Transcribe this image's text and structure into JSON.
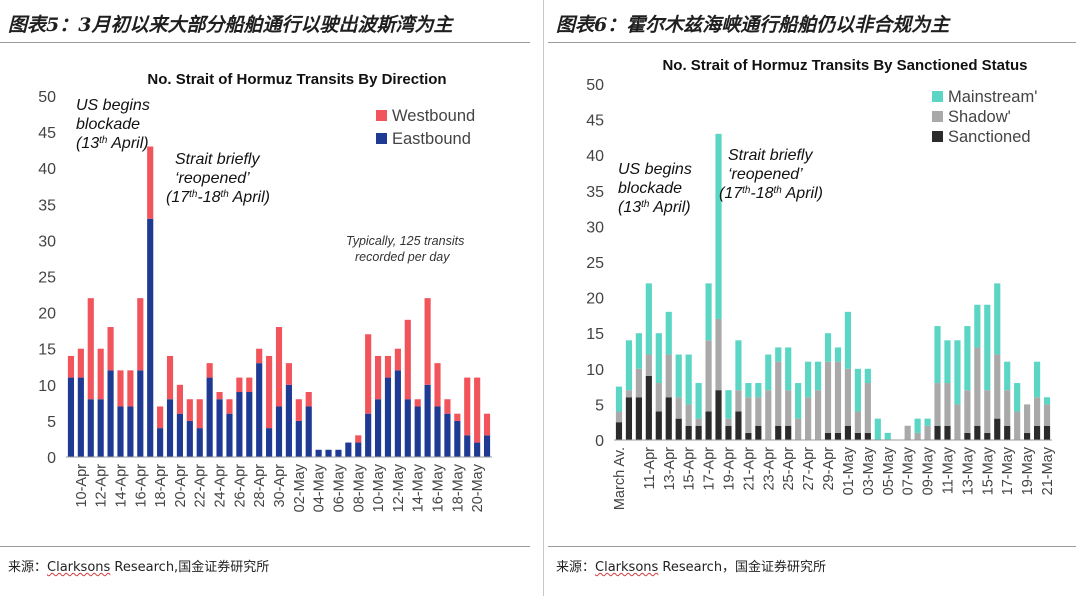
{
  "panels": [
    {
      "heading": "图表5：3月初以来大部分船舶通行以驶出波斯湾为主",
      "source_prefix": "来源：",
      "source_name": "Clarksons",
      "source_rest": " Research,国金证券研究所"
    },
    {
      "heading": "图表6：霍尔木兹海峡通行船舶仍以非合规为主",
      "source_prefix": "来源：",
      "source_name": "Clarksons",
      "source_rest": " Research，国金证券研究所"
    }
  ],
  "chart_data": [
    {
      "type": "bar",
      "stacked": true,
      "title": "No. Strait of Hormuz Transits By Direction",
      "ylim": [
        0,
        50
      ],
      "yticks": [
        0,
        5,
        10,
        15,
        20,
        25,
        30,
        35,
        40,
        45,
        50
      ],
      "grid": false,
      "legend_position": "top-right",
      "categories": [
        "09-Apr",
        "10-Apr",
        "11-Apr",
        "12-Apr",
        "13-Apr",
        "14-Apr",
        "15-Apr",
        "16-Apr",
        "17-Apr",
        "18-Apr",
        "19-Apr",
        "20-Apr",
        "21-Apr",
        "22-Apr",
        "23-Apr",
        "24-Apr",
        "25-Apr",
        "26-Apr",
        "27-Apr",
        "28-Apr",
        "29-Apr",
        "30-Apr",
        "01-May",
        "02-May",
        "03-May",
        "04-May",
        "05-May",
        "06-May",
        "07-May",
        "08-May",
        "09-May",
        "10-May",
        "11-May",
        "12-May",
        "13-May",
        "14-May",
        "15-May",
        "16-May",
        "17-May",
        "18-May",
        "19-May",
        "20-May",
        "21-May"
      ],
      "tick_labels": [
        "10-Apr",
        "12-Apr",
        "14-Apr",
        "16-Apr",
        "18-Apr",
        "20-Apr",
        "22-Apr",
        "24-Apr",
        "26-Apr",
        "28-Apr",
        "30-Apr",
        "02-May",
        "04-May",
        "06-May",
        "08-May",
        "10-May",
        "12-May",
        "14-May",
        "16-May",
        "18-May",
        "20-May"
      ],
      "series": [
        {
          "name": "Eastbound",
          "color": "#1f3a93",
          "values": [
            11,
            11,
            8,
            8,
            12,
            7,
            7,
            12,
            33,
            4,
            8,
            6,
            5,
            4,
            11,
            8,
            6,
            9,
            9,
            13,
            4,
            7,
            10,
            5,
            7,
            1,
            1,
            1,
            2,
            2,
            6,
            8,
            11,
            12,
            8,
            7,
            10,
            7,
            6,
            5,
            3,
            2,
            3
          ]
        },
        {
          "name": "Westbound",
          "color": "#f2545b",
          "values": [
            3,
            4,
            14,
            7,
            6,
            5,
            5,
            10,
            10,
            3,
            6,
            4,
            3,
            4,
            2,
            1,
            2,
            2,
            2,
            2,
            10,
            11,
            3,
            3,
            2,
            0,
            0,
            0,
            0,
            1,
            11,
            6,
            3,
            3,
            11,
            1,
            12,
            6,
            2,
            1,
            8,
            9,
            3
          ]
        }
      ],
      "annotations": [
        {
          "text": "US begins",
          "style": "italic"
        },
        {
          "text": "blockade",
          "style": "italic"
        },
        {
          "text": "(13",
          "sup": "th",
          "tail": " April)",
          "style": "italic"
        },
        {
          "text": "Strait briefly",
          "style": "italic"
        },
        {
          "text": "‘reopened’",
          "style": "italic"
        },
        {
          "text": "(17",
          "sup": "th",
          "mid": "-18",
          "sup2": "th",
          "tail": " April)",
          "style": "italic"
        },
        {
          "text": "Typically, 125 transits",
          "style": "italic-small"
        },
        {
          "text": "recorded per day",
          "style": "italic-small"
        }
      ]
    },
    {
      "type": "bar",
      "stacked": true,
      "title": "No. Strait of Hormuz Transits By Sanctioned Status",
      "ylim": [
        0,
        50
      ],
      "yticks": [
        0,
        5,
        10,
        15,
        20,
        25,
        30,
        35,
        40,
        45,
        50
      ],
      "grid": false,
      "legend_position": "top-right",
      "categories": [
        "March Av.",
        "09-Apr",
        "10-Apr",
        "11-Apr",
        "12-Apr",
        "13-Apr",
        "14-Apr",
        "15-Apr",
        "16-Apr",
        "17-Apr",
        "18-Apr",
        "19-Apr",
        "20-Apr",
        "21-Apr",
        "22-Apr",
        "23-Apr",
        "24-Apr",
        "25-Apr",
        "26-Apr",
        "27-Apr",
        "28-Apr",
        "29-Apr",
        "30-Apr",
        "01-May",
        "02-May",
        "03-May",
        "04-May",
        "05-May",
        "06-May",
        "07-May",
        "08-May",
        "09-May",
        "10-May",
        "11-May",
        "12-May",
        "13-May",
        "14-May",
        "15-May",
        "16-May",
        "17-May",
        "18-May",
        "19-May",
        "20-May",
        "21-May"
      ],
      "tick_labels": [
        "March Av.",
        "11-Apr",
        "13-Apr",
        "15-Apr",
        "17-Apr",
        "19-Apr",
        "21-Apr",
        "23-Apr",
        "25-Apr",
        "27-Apr",
        "29-Apr",
        "01-May",
        "03-May",
        "05-May",
        "07-May",
        "09-May",
        "11-May",
        "13-May",
        "15-May",
        "17-May",
        "19-May",
        "21-May"
      ],
      "series": [
        {
          "name": "Sanctioned",
          "color": "#2b2b2b",
          "values": [
            2.5,
            6,
            6,
            9,
            4,
            6,
            3,
            2,
            2,
            4,
            7,
            2,
            4,
            1,
            2,
            0,
            2,
            2,
            0,
            0,
            0,
            1,
            1,
            2,
            1,
            1,
            0,
            0,
            0,
            0,
            0,
            0,
            2,
            2,
            0,
            1,
            2,
            1,
            3,
            2,
            0,
            1,
            2,
            2
          ]
        },
        {
          "name": "Shadow'",
          "color": "#a9a9a9",
          "values": [
            1.5,
            1,
            4,
            3,
            4,
            6,
            3,
            3,
            1,
            10,
            10,
            1,
            3,
            5,
            4,
            7,
            9,
            5,
            3,
            6,
            7,
            10,
            10,
            8,
            3,
            7,
            0,
            0,
            0,
            2,
            1,
            2,
            6,
            6,
            5,
            6,
            11,
            6,
            9,
            5,
            4,
            4,
            4,
            3
          ]
        },
        {
          "name": "Mainstream'",
          "color": "#5bd6c4",
          "values": [
            3.5,
            7,
            5,
            10,
            7,
            6,
            6,
            7,
            5,
            8,
            26,
            4,
            7,
            2,
            2,
            5,
            2,
            6,
            5,
            5,
            4,
            4,
            2,
            8,
            6,
            2,
            3,
            1,
            0,
            0,
            2,
            1,
            8,
            6,
            9,
            9,
            6,
            12,
            10,
            4,
            4,
            0,
            5,
            1
          ]
        }
      ],
      "annotations": [
        {
          "text": "US begins",
          "style": "italic"
        },
        {
          "text": "blockade",
          "style": "italic"
        },
        {
          "text": "(13",
          "sup": "th",
          "tail": " April)",
          "style": "italic"
        },
        {
          "text": "Strait briefly",
          "style": "italic"
        },
        {
          "text": "‘reopened’",
          "style": "italic"
        },
        {
          "text": "(17",
          "sup": "th",
          "mid": "-18",
          "sup2": "th",
          "tail": " April)",
          "style": "italic"
        }
      ]
    }
  ]
}
